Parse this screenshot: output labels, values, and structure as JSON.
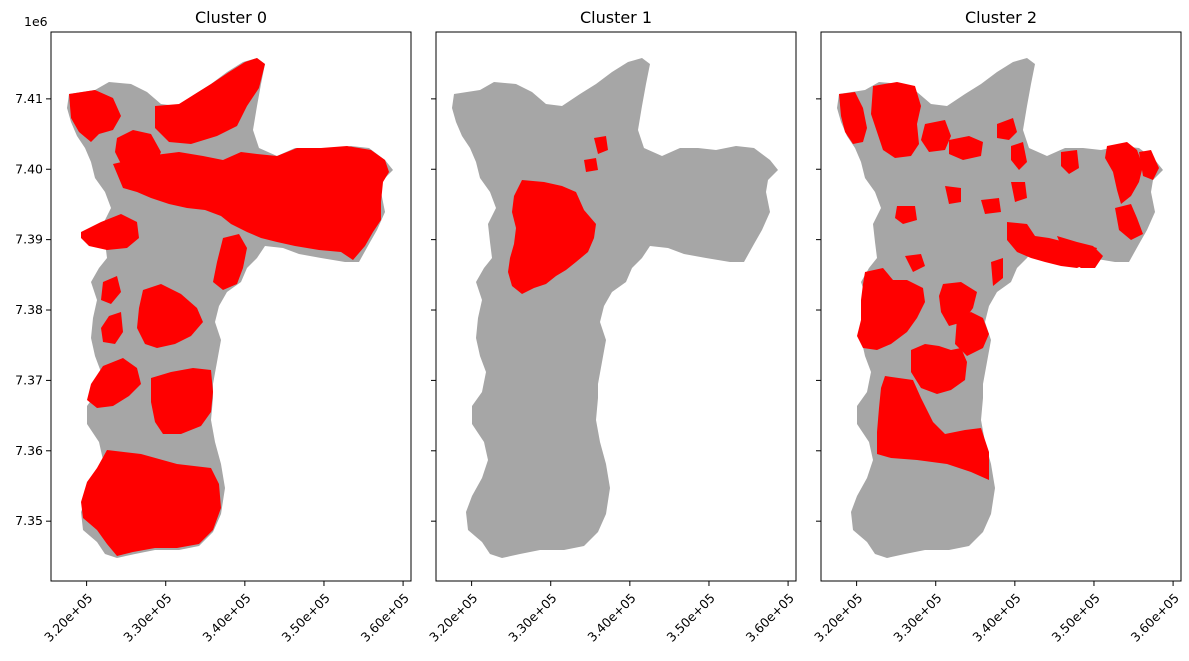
{
  "chart_data": {
    "type": "map",
    "y_offset_label": "1e6",
    "xlim": [
      315500,
      361000
    ],
    "ylim": [
      7.3415,
      7.4195
    ],
    "x_ticks": [
      320000,
      330000,
      340000,
      350000,
      360000
    ],
    "x_tick_labels": [
      "3.20e+05",
      "3.30e+05",
      "3.40e+05",
      "3.50e+05",
      "3.60e+05"
    ],
    "y_ticks": [
      7.35,
      7.36,
      7.37,
      7.38,
      7.39,
      7.4,
      7.41
    ],
    "y_tick_labels": [
      "7.35",
      "7.36",
      "7.37",
      "7.38",
      "7.39",
      "7.40",
      "7.41"
    ],
    "colors": {
      "selected": "#ff0000",
      "other": "#a6a6a6"
    },
    "panels": [
      {
        "title": "Cluster 0"
      },
      {
        "title": "Cluster 1"
      },
      {
        "title": "Cluster 2"
      }
    ]
  }
}
